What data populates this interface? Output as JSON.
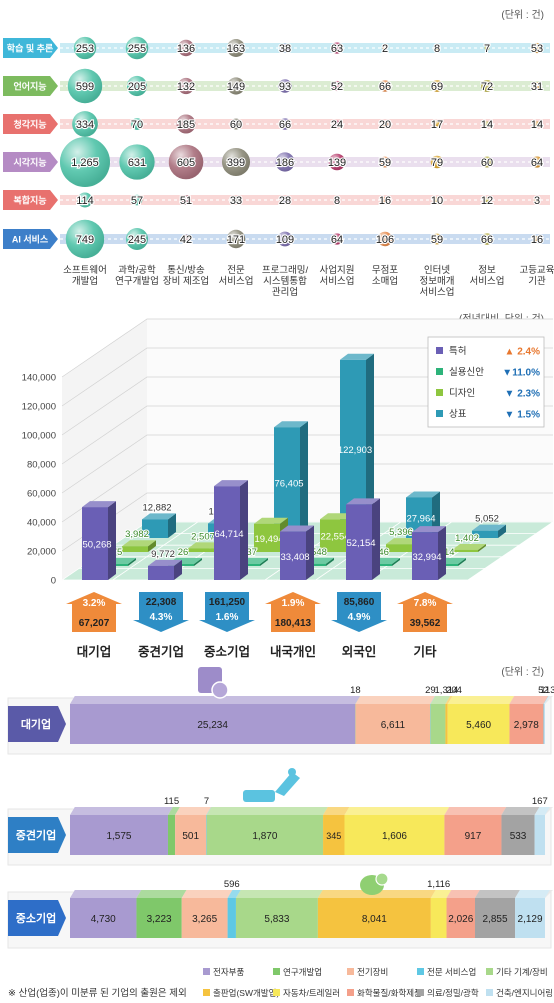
{
  "chart_data": [
    {
      "type": "bubble-matrix",
      "unit_label": "(단위 : 건)",
      "rows": [
        "학습 및 추론",
        "언어지능",
        "청각지능",
        "시각지능",
        "복합지능",
        "AI 서비스"
      ],
      "columns": [
        "소프트웨어\n개발업",
        "과학/공학\n연구개발업",
        "통신/방송\n장비 제조업",
        "전문\n서비스업",
        "프로그래밍/\n시스템통합\n관리업",
        "사업지원\n서비스업",
        "무점포\n소매업",
        "인터넷\n정보매개\n서비스업",
        "정보\n서비스업",
        "고등교육\n기관"
      ],
      "values": [
        [
          253,
          255,
          136,
          163,
          38,
          63,
          2,
          8,
          7,
          53
        ],
        [
          599,
          205,
          132,
          149,
          93,
          52,
          66,
          69,
          72,
          31
        ],
        [
          334,
          70,
          185,
          60,
          66,
          24,
          20,
          17,
          14,
          14
        ],
        [
          1265,
          631,
          605,
          399,
          186,
          139,
          59,
          79,
          60,
          64
        ],
        [
          114,
          57,
          51,
          33,
          28,
          8,
          16,
          10,
          12,
          3
        ],
        [
          749,
          245,
          42,
          171,
          109,
          64,
          106,
          59,
          66,
          16
        ]
      ],
      "row_colors": [
        "#3fb7d9",
        "#7dbb5f",
        "#e8716e",
        "#b58bc4",
        "#e8716e",
        "#3d7fc9"
      ],
      "column_colors": [
        "#4fc3a8",
        "#4fc3a8",
        "#a96f7c",
        "#8c8a78",
        "#7d6fae",
        "#b63a6a",
        "#e58a4c",
        "#d9a632",
        "#b9b04a",
        "#d49432"
      ]
    },
    {
      "type": "bar3d",
      "unit_label": "(전년대비, 단위 : 건)",
      "categories": [
        "대기업",
        "중견기업",
        "중소기업",
        "내국개인",
        "외국인",
        "기타"
      ],
      "series": [
        {
          "name": "특허",
          "values": [
            50268,
            9772,
            64714,
            33408,
            52154,
            32994
          ],
          "color": "#6a5fb5"
        },
        {
          "name": "실용신안",
          "values": [
            75,
            26,
            637,
            1548,
            346,
            114
          ],
          "color": "#2db37a"
        },
        {
          "name": "디자인",
          "values": [
            3982,
            2507,
            19494,
            22554,
            5396,
            1402
          ],
          "color": "#8ec63f"
        },
        {
          "name": "상표",
          "values": [
            12882,
            10003,
            76405,
            122903,
            27964,
            5052
          ],
          "color": "#2e9ab5"
        }
      ],
      "legend_changes": [
        "▲ 2.4%",
        "▼11.0%",
        "▼ 2.3%",
        "▼ 1.5%"
      ],
      "legend_change_colors": [
        "#e8772e",
        "#1f6fb5",
        "#1f6fb5",
        "#1f6fb5"
      ],
      "y_ticks": [
        "0",
        "20,000",
        "40,000",
        "60,000",
        "80,000",
        "100,000",
        "120,000",
        "140,000"
      ],
      "ylim": [
        0,
        140000
      ],
      "totals": [
        "67,207",
        "22,308",
        "161,250",
        "180,413",
        "85,860",
        "39,562"
      ],
      "changes": [
        "3.2%",
        "4.3%",
        "1.6%",
        "1.9%",
        "4.9%",
        "7.8%"
      ],
      "change_dirs": [
        "up",
        "down",
        "down",
        "up",
        "down",
        "up"
      ]
    },
    {
      "type": "stacked-bar",
      "unit_label": "(단위 : 건)",
      "legend": [
        "전자부품",
        "연구개발업",
        "전기장비",
        "전문 서비스업",
        "기타 기계/장비",
        "출판업(SW개발업)",
        "자동차/트레일러",
        "화학물질/화학제품",
        "의료/정밀/광학",
        "건축/엔지니어링"
      ],
      "colors": [
        "#a89ad0",
        "#7fc86a",
        "#f7b99b",
        "#5ec8e4",
        "#a8d88a",
        "#f5c33f",
        "#f7e85a",
        "#f4a08a",
        "#a3a3a3",
        "#bfe0f0"
      ],
      "rows": [
        {
          "name": "대기업",
          "values": [
            25234,
            18,
            6611,
            29,
            1314,
            204,
            5460,
            2978,
            52,
            113
          ],
          "labels": [
            "25,234",
            "18",
            "6,611",
            "29",
            "1,314",
            "204",
            "5,460",
            "2,978",
            "52",
            "113"
          ]
        },
        {
          "name": "중견기업",
          "values": [
            1575,
            115,
            501,
            7,
            1870,
            345,
            1606,
            917,
            533,
            167
          ],
          "labels": [
            "1,575",
            "115",
            "501",
            "7",
            "1,870",
            "345",
            "1,606",
            "917",
            "533",
            "167"
          ]
        },
        {
          "name": "중소기업",
          "values": [
            4730,
            3223,
            3265,
            596,
            5833,
            8041,
            1116,
            2026,
            2855,
            2129
          ],
          "labels": [
            "4,730",
            "3,223",
            "3,265",
            "596",
            "5,833",
            "8,041",
            "1,116",
            "2,026",
            "2,855",
            "2,129"
          ]
        }
      ],
      "footnote": "※ 산업(업종)이 미분류 된 기업의 출원은 제외"
    }
  ]
}
